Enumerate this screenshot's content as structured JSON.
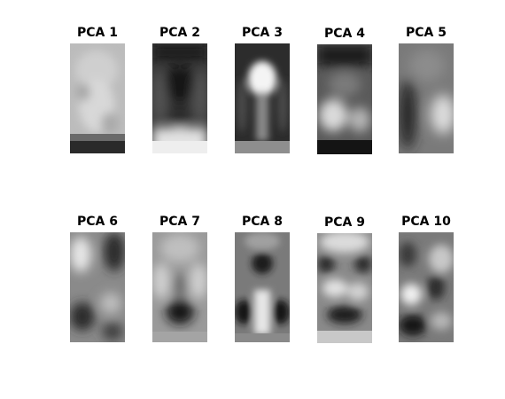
{
  "figure": {
    "panels": [
      {
        "title": "PCA 1"
      },
      {
        "title": "PCA 2"
      },
      {
        "title": "PCA 3"
      },
      {
        "title": "PCA 4"
      },
      {
        "title": "PCA 5"
      },
      {
        "title": "PCA 6"
      },
      {
        "title": "PCA 7"
      },
      {
        "title": "PCA 8"
      },
      {
        "title": "PCA 9"
      },
      {
        "title": "PCA 10"
      }
    ]
  }
}
